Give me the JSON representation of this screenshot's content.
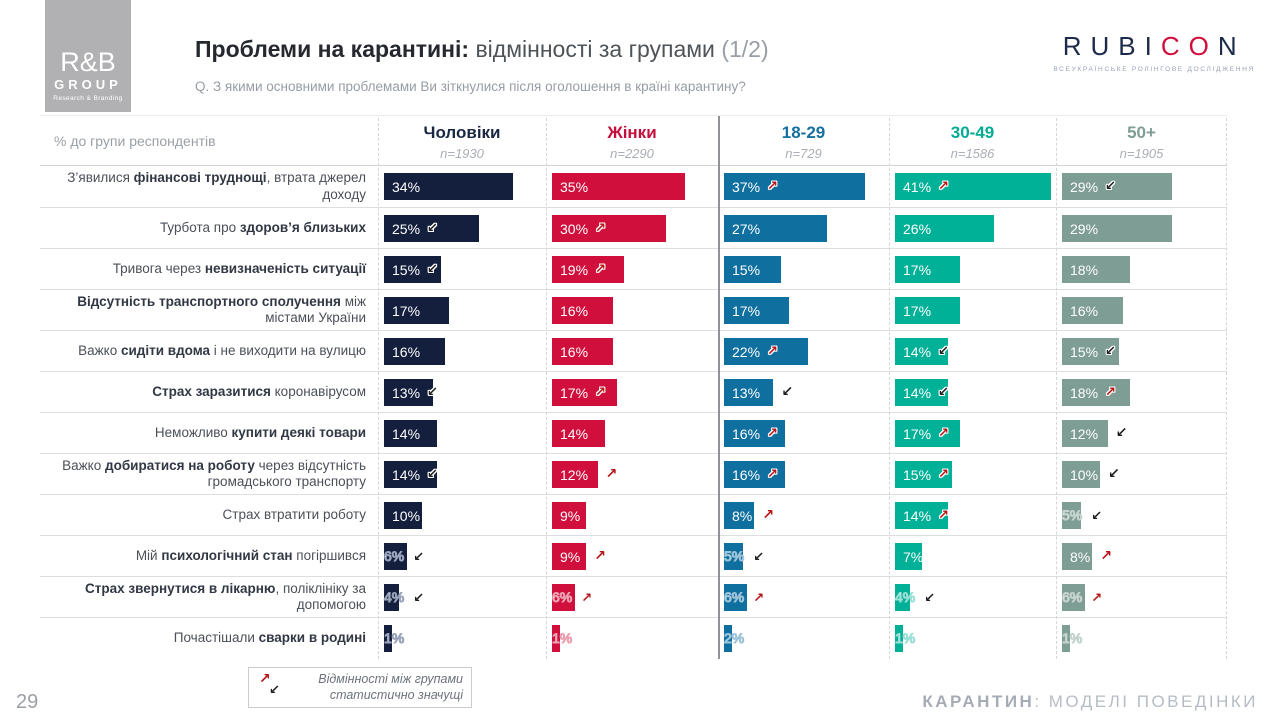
{
  "logo_rb": {
    "line1": "R&B",
    "line2": "GROUP",
    "line3": "Research & Branding"
  },
  "logo_rubicon": {
    "part1": "RUBI",
    "part2": "CO",
    "part3": "N",
    "subtitle": "ВСЕУКРАЇНСЬКЕ РОЛІНГОВЕ ДОСЛІДЖЕННЯ"
  },
  "header": {
    "title_bold": "Проблеми на карантині:",
    "title_regular": " відмінності за групами ",
    "title_suffix": "(1/2)",
    "question": "Q. З якими основними проблемами Ви зіткнулися після оголошення в країні карантину?"
  },
  "footer": {
    "page_number": "29",
    "legend_line1": "Відмінності між групами",
    "legend_line2": "статистично значущі",
    "right_bold": "КАРАНТИН",
    "right_rest": ": МОДЕЛІ ПОВЕДІНКИ"
  },
  "table": {
    "axis_label": "% до групи респондентів",
    "columns": [
      {
        "label": "Чоловіки",
        "n": "n=1930",
        "color": "#141f3e",
        "light": "#9aa3ba",
        "header_color": "#1b2845"
      },
      {
        "label": "Жінки",
        "n": "n=2290",
        "color": "#d00f3c",
        "light": "#eba0b1",
        "header_color": "#c40f3d"
      },
      {
        "label": "18-29",
        "n": "n=729",
        "color": "#0f6f9f",
        "light": "#9cc3d8",
        "header_color": "#156f9f"
      },
      {
        "label": "30-49",
        "n": "n=1586",
        "color": "#00b097",
        "light": "#99dfd5",
        "header_color": "#00ab94"
      },
      {
        "label": "50+",
        "n": "n=1905",
        "color": "#7e9d94",
        "light": "#c5d3ce",
        "header_color": "#7e9d94"
      }
    ],
    "rows": [
      {
        "label_parts": [
          {
            "t": "З’явилися ",
            "b": false
          },
          {
            "t": "фінансові труднощі",
            "b": true
          },
          {
            "t": ", втрата джерел доходу",
            "b": false
          }
        ],
        "values": [
          {
            "v": 34
          },
          {
            "v": 35
          },
          {
            "v": 37,
            "a": "up",
            "p": "in"
          },
          {
            "v": 41,
            "a": "up",
            "p": "in"
          },
          {
            "v": 29,
            "a": "down",
            "p": "in"
          }
        ]
      },
      {
        "label_parts": [
          {
            "t": "Турбота про ",
            "b": false
          },
          {
            "t": "здоров’я близьких",
            "b": true
          }
        ],
        "values": [
          {
            "v": 25,
            "a": "down",
            "p": "in"
          },
          {
            "v": 30,
            "a": "up",
            "p": "in"
          },
          {
            "v": 27
          },
          {
            "v": 26
          },
          {
            "v": 29
          }
        ]
      },
      {
        "label_parts": [
          {
            "t": "Тривога через ",
            "b": false
          },
          {
            "t": "невизначеність ситуації",
            "b": true
          }
        ],
        "values": [
          {
            "v": 15,
            "a": "down",
            "p": "in"
          },
          {
            "v": 19,
            "a": "up",
            "p": "in"
          },
          {
            "v": 15
          },
          {
            "v": 17
          },
          {
            "v": 18
          }
        ]
      },
      {
        "label_parts": [
          {
            "t": "Відсутність транспортного сполучення",
            "b": true
          },
          {
            "t": " між містами України",
            "b": false
          }
        ],
        "values": [
          {
            "v": 17
          },
          {
            "v": 16
          },
          {
            "v": 17
          },
          {
            "v": 17
          },
          {
            "v": 16
          }
        ]
      },
      {
        "label_parts": [
          {
            "t": "Важко ",
            "b": false
          },
          {
            "t": "сидіти вдома",
            "b": true
          },
          {
            "t": " і не виходити на вулицю",
            "b": false
          }
        ],
        "values": [
          {
            "v": 16
          },
          {
            "v": 16
          },
          {
            "v": 22,
            "a": "up",
            "p": "in"
          },
          {
            "v": 14,
            "a": "down",
            "p": "in"
          },
          {
            "v": 15,
            "a": "down",
            "p": "in"
          }
        ]
      },
      {
        "label_parts": [
          {
            "t": "Страх заразитися",
            "b": true
          },
          {
            "t": " коронавірусом",
            "b": false
          }
        ],
        "values": [
          {
            "v": 13,
            "a": "down",
            "p": "in"
          },
          {
            "v": 17,
            "a": "up",
            "p": "in"
          },
          {
            "v": 13,
            "a": "down",
            "p": "out"
          },
          {
            "v": 14,
            "a": "down",
            "p": "in"
          },
          {
            "v": 18,
            "a": "up",
            "p": "in"
          }
        ]
      },
      {
        "label_parts": [
          {
            "t": "Неможливо ",
            "b": false
          },
          {
            "t": "купити деякі товари",
            "b": true
          }
        ],
        "values": [
          {
            "v": 14
          },
          {
            "v": 14
          },
          {
            "v": 16,
            "a": "up",
            "p": "in"
          },
          {
            "v": 17,
            "a": "up",
            "p": "in"
          },
          {
            "v": 12,
            "a": "down",
            "p": "out"
          }
        ]
      },
      {
        "label_parts": [
          {
            "t": "Важко ",
            "b": false
          },
          {
            "t": "добиратися на роботу",
            "b": true
          },
          {
            "t": " через відсутність громадського транспорту",
            "b": false
          }
        ],
        "values": [
          {
            "v": 14,
            "a": "down",
            "p": "in"
          },
          {
            "v": 12,
            "a": "up",
            "p": "out"
          },
          {
            "v": 16,
            "a": "up",
            "p": "in"
          },
          {
            "v": 15,
            "a": "up",
            "p": "in"
          },
          {
            "v": 10,
            "a": "down",
            "p": "out"
          }
        ]
      },
      {
        "label_parts": [
          {
            "t": "Страх втратити роботу",
            "b": false
          }
        ],
        "values": [
          {
            "v": 10
          },
          {
            "v": 9
          },
          {
            "v": 8,
            "a": "up",
            "p": "out"
          },
          {
            "v": 14,
            "a": "up",
            "p": "in"
          },
          {
            "v": 5,
            "a": "down",
            "p": "out"
          }
        ]
      },
      {
        "label_parts": [
          {
            "t": "Мій ",
            "b": false
          },
          {
            "t": "психологічний стан",
            "b": true
          },
          {
            "t": " погіршився",
            "b": false
          }
        ],
        "values": [
          {
            "v": 6,
            "a": "down",
            "p": "out"
          },
          {
            "v": 9,
            "a": "up",
            "p": "out"
          },
          {
            "v": 5,
            "a": "down",
            "p": "out"
          },
          {
            "v": 7
          },
          {
            "v": 8,
            "a": "up",
            "p": "out"
          }
        ]
      },
      {
        "label_parts": [
          {
            "t": "Страх звернутися в лікарню",
            "b": true
          },
          {
            "t": ", поліклініку за допомогою",
            "b": false
          }
        ],
        "values": [
          {
            "v": 4,
            "a": "down",
            "p": "out"
          },
          {
            "v": 6,
            "a": "up",
            "p": "out"
          },
          {
            "v": 6,
            "a": "up",
            "p": "out"
          },
          {
            "v": 4,
            "a": "down",
            "p": "out"
          },
          {
            "v": 6,
            "a": "up",
            "p": "out"
          }
        ]
      },
      {
        "label_parts": [
          {
            "t": "Почастішали ",
            "b": false
          },
          {
            "t": "сварки в родині",
            "b": true
          }
        ],
        "values": [
          {
            "v": 1
          },
          {
            "v": 1
          },
          {
            "v": 2
          },
          {
            "v": 1
          },
          {
            "v": 1
          }
        ]
      }
    ]
  },
  "chart_data": {
    "type": "bar",
    "orientation": "horizontal",
    "unit": "%",
    "title": "Проблеми на карантині: відмінності за групами (1/2)",
    "question": "Q. З якими основними проблемами Ви зіткнулися після оголошення в країні карантину?",
    "categories": [
      "З’явилися фінансові труднощі, втрата джерел доходу",
      "Турбота про здоров’я близьких",
      "Тривога через невизначеність ситуації",
      "Відсутність транспортного сполучення між містами України",
      "Важко сидіти вдома і не виходити на вулицю",
      "Страх заразитися коронавірусом",
      "Неможливо купити деякі товари",
      "Важко добиратися на роботу через відсутність громадського транспорту",
      "Страх втратити роботу",
      "Мій психологічний стан погіршився",
      "Страх звернутися в лікарню, поліклініку за допомогою",
      "Почастішали сварки в родині"
    ],
    "series": [
      {
        "name": "Чоловіки",
        "n": 1930,
        "color": "#141f3e",
        "values": [
          34,
          25,
          15,
          17,
          16,
          13,
          14,
          14,
          10,
          6,
          4,
          1
        ]
      },
      {
        "name": "Жінки",
        "n": 2290,
        "color": "#d00f3c",
        "values": [
          35,
          30,
          19,
          16,
          16,
          17,
          14,
          12,
          9,
          9,
          6,
          1
        ]
      },
      {
        "name": "18-29",
        "n": 729,
        "color": "#0f6f9f",
        "values": [
          37,
          27,
          15,
          17,
          22,
          13,
          16,
          16,
          8,
          5,
          6,
          2
        ]
      },
      {
        "name": "30-49",
        "n": 1586,
        "color": "#00b097",
        "values": [
          41,
          26,
          17,
          17,
          14,
          14,
          17,
          15,
          14,
          7,
          4,
          1
        ]
      },
      {
        "name": "50+",
        "n": 1905,
        "color": "#7e9d94",
        "values": [
          29,
          29,
          18,
          16,
          15,
          18,
          12,
          10,
          5,
          8,
          6,
          1
        ]
      }
    ],
    "significance_note": "Відмінності між групами статистично значущі",
    "legend_position": "column headers",
    "xlim": [
      0,
      45
    ]
  }
}
